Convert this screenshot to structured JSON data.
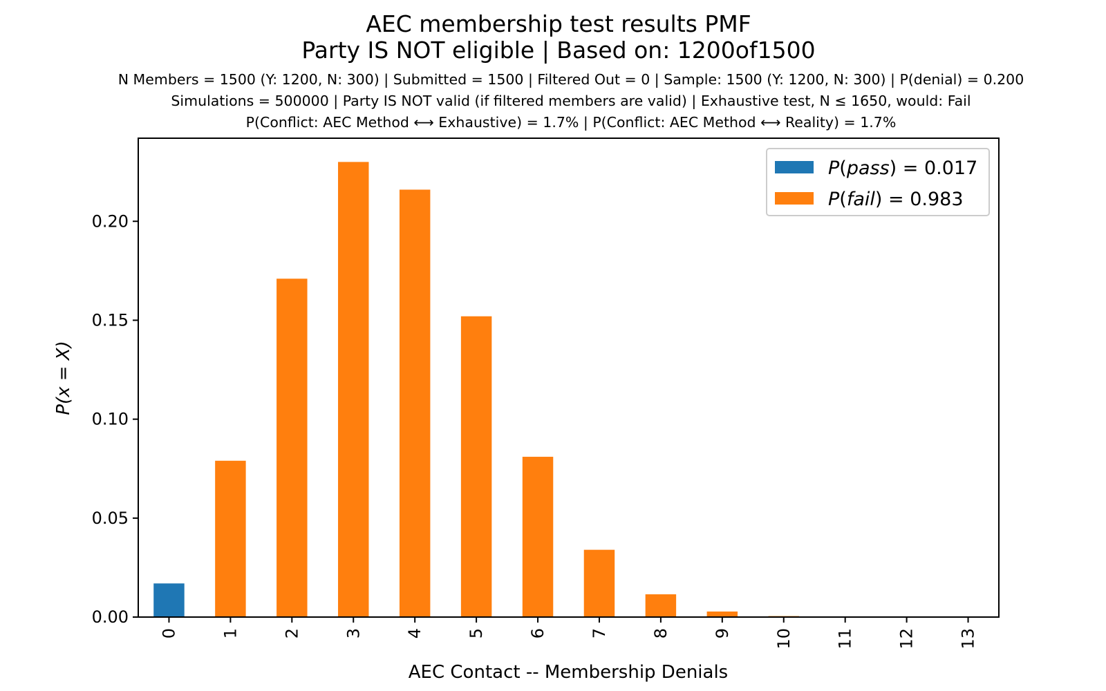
{
  "chart_data": {
    "type": "bar",
    "title": "AEC membership test results PMF",
    "subtitle": "Party IS NOT eligible | Based on: 1200of1500",
    "info_lines": [
      "N Members = 1500 (Y: 1200, N: 300) | Submitted = 1500 | Filtered Out = 0 | Sample: 1500 (Y: 1200, N: 300) | P(denial) = 0.200",
      "Simulations = 500000 | Party IS NOT valid (if filtered members are valid) | Exhaustive test, N ≤ 1650, would: Fail",
      "P(Conflict: AEC Method ⟷ Exhaustive) = 1.7% | P(Conflict: AEC Method ⟷ Reality) = 1.7%"
    ],
    "xlabel": "AEC Contact -- Membership Denials",
    "ylabel": "P(x = X)",
    "ylim": [
      0,
      0.242
    ],
    "yticks": [
      "0.00",
      "0.05",
      "0.10",
      "0.15",
      "0.20"
    ],
    "categories": [
      "0",
      "1",
      "2",
      "3",
      "4",
      "5",
      "6",
      "7",
      "8",
      "9",
      "10",
      "11",
      "12",
      "13"
    ],
    "values": [
      0.017,
      0.079,
      0.171,
      0.23,
      0.216,
      0.152,
      0.081,
      0.034,
      0.0115,
      0.0028,
      0.0005,
      0.0001,
      0.0,
      0.0
    ],
    "bar_series": [
      "pass",
      "fail",
      "fail",
      "fail",
      "fail",
      "fail",
      "fail",
      "fail",
      "fail",
      "fail",
      "fail",
      "fail",
      "fail",
      "fail"
    ],
    "series": [
      {
        "key": "pass",
        "name": "P(pass) = 0.017",
        "color": "#1f77b4"
      },
      {
        "key": "fail",
        "name": "P(fail) = 0.983",
        "color": "#ff7f0e"
      }
    ],
    "legend": [
      {
        "key": "pass",
        "symbol": "P",
        "var": "pass",
        "value": " = 0.017"
      },
      {
        "key": "fail",
        "symbol": "P",
        "var": "fail",
        "value": " = 0.983"
      }
    ],
    "legend_position": "upper-right",
    "grid": false
  }
}
